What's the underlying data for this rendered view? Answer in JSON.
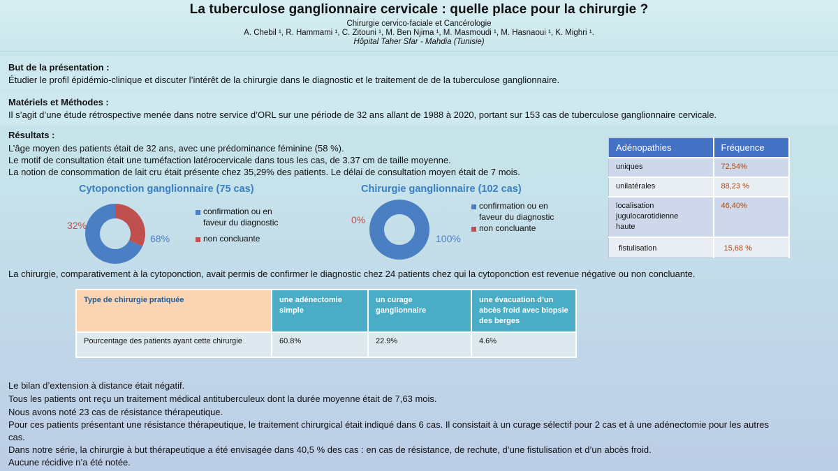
{
  "header": {
    "title": "La tuberculose ganglionnaire cervicale : quelle place pour la chirurgie ?",
    "subtitle": "Chirurgie cervico-faciale et Cancérologie",
    "authors": "A. Chebil ¹, R. Hammami ¹, C. Zitouni ¹, M. Ben Njima ¹, M. Masmoudi ¹, M. Hasnaoui ¹, K. Mighri ¹.",
    "hospital": "Hôpital Taher Sfar - Mahdia (Tunisie)"
  },
  "but": {
    "title": "But de la présentation :",
    "text": "Étudier le profil épidémio-clinique et discuter l’intérêt de la chirurgie dans le diagnostic et le traitement de de la tuberculose ganglionnaire."
  },
  "methodes": {
    "title": "Matériels et Méthodes :",
    "text": " Il s’agit d’une étude rétrospective menée dans notre service d’ORL sur une période de 32 ans allant de 1988 à 2020, portant sur 153 cas de tuberculose ganglionnaire cervicale."
  },
  "resultats": {
    "title": "Résultats :",
    "lines": [
      "L’âge moyen des patients était de 32 ans, avec une prédominance féminine (58 %).",
      "Le motif de consultation était une tuméfaction latérocervicale dans tous les cas, de 3.37 cm de taille moyenne.",
      "La notion de consommation de lait cru était présente chez 35,29% des patients. Le délai de consultation moyen était de 7 mois."
    ],
    "chirurgie_line": "La chirurgie, comparativement à la cytoponction, avait permis de confirmer le diagnostic chez 24 patients chez qui la cytoponction est revenue négative ou non concluante."
  },
  "chart_data": [
    {
      "type": "pie",
      "title": "Cytoponction ganglionnaire (75 cas)",
      "categories": [
        "confirmation ou en faveur du diagnostic",
        "non concluante"
      ],
      "values": [
        68,
        32
      ],
      "value_labels": [
        "68%",
        "32%"
      ],
      "colors": [
        "#4a7fc3",
        "#c0504d"
      ],
      "legend": [
        "confirmation ou en",
        "faveur du diagnostic",
        "non concluante"
      ],
      "legend_position": "right"
    },
    {
      "type": "pie",
      "title": "Chirurgie ganglionnaire (102 cas)",
      "categories": [
        "confirmation ou en faveur du diagnostic",
        "non concluante"
      ],
      "values": [
        100,
        0
      ],
      "value_labels": [
        "100%",
        "0%"
      ],
      "colors": [
        "#4a7fc3",
        "#c0504d"
      ],
      "legend": [
        "confirmation ou en",
        "faveur du diagnostic",
        "non concluante"
      ],
      "legend_position": "right"
    }
  ],
  "adenopathies": {
    "headers": [
      "Adénopathies",
      "Fréquence"
    ],
    "rows": [
      [
        "uniques",
        "72,54%"
      ],
      [
        "unilatérales",
        "88,23 %"
      ],
      [
        "localisation\njugulocarotidienne\nhaute",
        "46,40%"
      ],
      [
        "fistulisation",
        "15,68 %"
      ]
    ]
  },
  "surgery_table": {
    "headers": [
      "Type de chirurgie pratiquée",
      "une adénectomie simple",
      "un curage ganglionnaire",
      "une évacuation d’un abcès froid avec biopsie des berges"
    ],
    "row": [
      "Pourcentage des patients ayant cette chirurgie",
      "60.8%",
      "22.9%",
      "4.6%"
    ]
  },
  "conclusion": {
    "lines": [
      "Le bilan d’extension à distance était négatif.",
      "Tous les patients ont reçu un traitement médical antituberculeux dont la durée moyenne était de 7,63 mois.",
      "Nous avons noté 23 cas de résistance thérapeutique.",
      "Pour ces patients présentant une résistance thérapeutique, le traitement chirurgical était indiqué dans 6 cas. Il consistait à un curage sélectif pour 2 cas et à une adénectomie pour les autres",
      "cas.",
      "Dans notre série, la chirurgie à but thérapeutique a été envisagée dans 40,5 % des cas : en cas de résistance, de rechute, d’une fistulisation et d’un abcès froid.",
      "Aucune récidive n’a été notée."
    ]
  }
}
